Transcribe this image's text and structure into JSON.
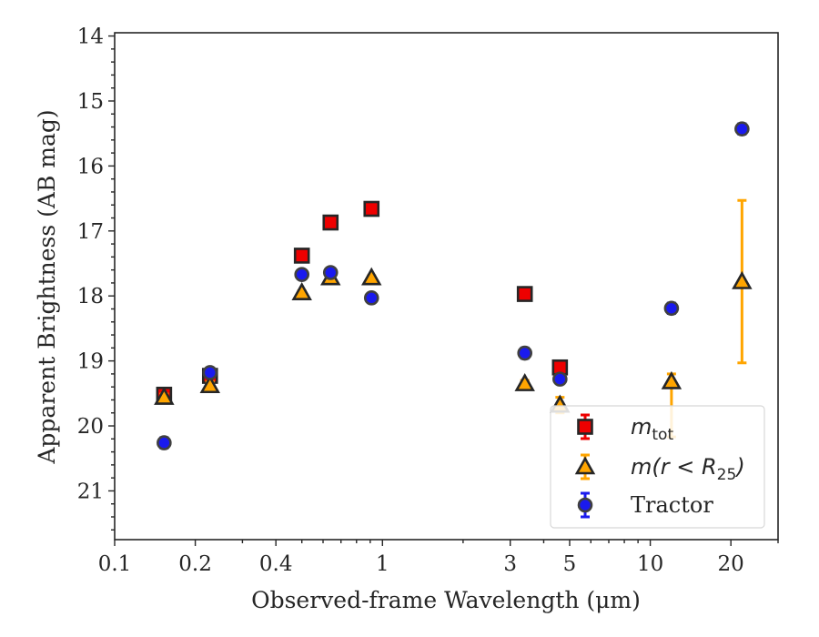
{
  "chart_data": {
    "type": "scatter",
    "xlabel": "Observed-frame Wavelength (μm)",
    "ylabel": "Apparent Brightness (AB mag)",
    "x_scale": "log",
    "xlim": [
      0.1,
      30
    ],
    "ylim": [
      21.75,
      13.95
    ],
    "y_inverted": true,
    "x_ticks": [
      {
        "value": 0.1,
        "label": "0.1"
      },
      {
        "value": 0.2,
        "label": "0.2"
      },
      {
        "value": 0.4,
        "label": "0.4"
      },
      {
        "value": 1,
        "label": "1"
      },
      {
        "value": 3,
        "label": "3"
      },
      {
        "value": 5,
        "label": "5"
      },
      {
        "value": 10,
        "label": "10"
      },
      {
        "value": 20,
        "label": "20"
      }
    ],
    "x_minor_ticks": [
      0.3,
      0.5,
      0.6,
      0.7,
      0.8,
      0.9,
      2,
      4,
      6,
      7,
      8,
      9,
      30
    ],
    "y_ticks": [
      {
        "value": 14,
        "label": "14"
      },
      {
        "value": 15,
        "label": "15"
      },
      {
        "value": 16,
        "label": "16"
      },
      {
        "value": 17,
        "label": "17"
      },
      {
        "value": 18,
        "label": "18"
      },
      {
        "value": 19,
        "label": "19"
      },
      {
        "value": 20,
        "label": "20"
      },
      {
        "value": 21,
        "label": "21"
      }
    ],
    "legend_position": "lower-right",
    "grid": false,
    "series": [
      {
        "name_main": "m",
        "name_sub": "tot",
        "marker": "square",
        "color": "#ee0000",
        "error_color": "#ee0000",
        "points": [
          {
            "x": 0.153,
            "y": 19.52,
            "err": 0.05
          },
          {
            "x": 0.227,
            "y": 19.23,
            "err": 0.08
          },
          {
            "x": 0.5,
            "y": 17.38,
            "err": 0.03
          },
          {
            "x": 0.64,
            "y": 16.87,
            "err": 0.03
          },
          {
            "x": 0.91,
            "y": 16.66,
            "err": 0.03
          },
          {
            "x": 3.4,
            "y": 17.97,
            "err": 0.04
          },
          {
            "x": 4.6,
            "y": 19.1,
            "err": 0.08
          }
        ]
      },
      {
        "name_main": "m",
        "name_expr": "(r < R",
        "name_sub": "25",
        "name_close": ")",
        "marker": "triangle",
        "color": "#ffa500",
        "error_color": "#ffa500",
        "points": [
          {
            "x": 0.153,
            "y": 19.56,
            "err": 0.05
          },
          {
            "x": 0.227,
            "y": 19.38,
            "err": 0.06
          },
          {
            "x": 0.5,
            "y": 17.95,
            "err": 0.03
          },
          {
            "x": 0.64,
            "y": 17.72,
            "err": 0.03
          },
          {
            "x": 0.91,
            "y": 17.72,
            "err": 0.03
          },
          {
            "x": 3.4,
            "y": 19.35,
            "err": 0.05
          },
          {
            "x": 4.6,
            "y": 19.68,
            "err": 0.12
          },
          {
            "x": 12.0,
            "y": 19.32,
            "err_low": 0.12,
            "err_high": 0.85
          },
          {
            "x": 22.0,
            "y": 17.78,
            "err": 1.25
          }
        ]
      },
      {
        "name": "Tractor",
        "marker": "circle",
        "color": "#1a1aee",
        "error_color": "#1a1aee",
        "points": [
          {
            "x": 0.153,
            "y": 20.26,
            "err": 0.08
          },
          {
            "x": 0.227,
            "y": 19.18,
            "err": 0.07
          },
          {
            "x": 0.5,
            "y": 17.67,
            "err": 0.07
          },
          {
            "x": 0.64,
            "y": 17.64,
            "err": 0.06
          },
          {
            "x": 0.91,
            "y": 18.03,
            "err": 0.06
          },
          {
            "x": 3.4,
            "y": 18.88,
            "err": 0.08
          },
          {
            "x": 4.6,
            "y": 19.28,
            "err": 0.07
          },
          {
            "x": 12.0,
            "y": 18.19,
            "err": 0.08
          },
          {
            "x": 22.0,
            "y": 15.43,
            "err": 0.08
          }
        ]
      }
    ]
  }
}
